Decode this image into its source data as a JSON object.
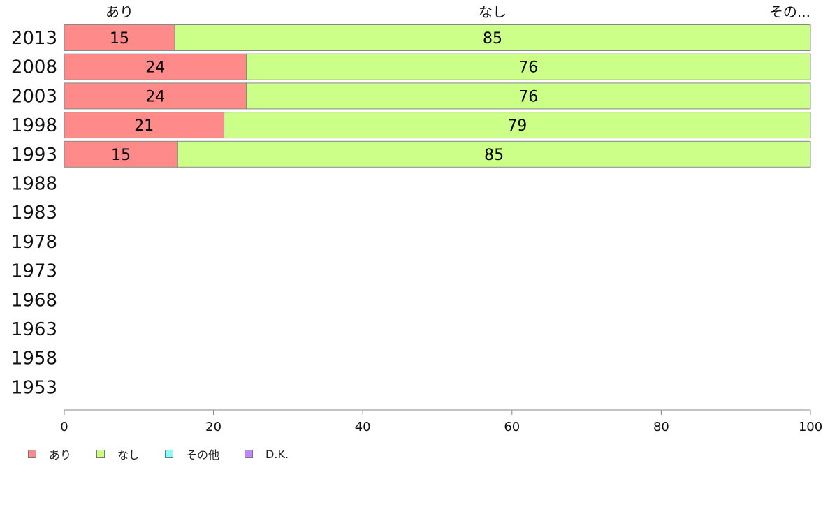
{
  "chart_data": {
    "type": "bar",
    "orientation": "horizontal",
    "stacked": true,
    "categories": [
      "2013",
      "2008",
      "2003",
      "1998",
      "1993",
      "1988",
      "1983",
      "1978",
      "1973",
      "1968",
      "1963",
      "1958",
      "1953"
    ],
    "series": [
      {
        "name": "あり",
        "color": "#ff8a8a",
        "values": [
          14.8,
          24.4,
          24.4,
          21.4,
          15.2,
          null,
          null,
          null,
          null,
          null,
          null,
          null,
          null
        ]
      },
      {
        "name": "なし",
        "color": "#ccff88",
        "values": [
          85.2,
          75.6,
          75.6,
          78.6,
          84.8,
          null,
          null,
          null,
          null,
          null,
          null,
          null,
          null
        ]
      },
      {
        "name": "その他",
        "color": "#88ffff",
        "values": [
          0,
          0,
          0,
          0,
          0,
          null,
          null,
          null,
          null,
          null,
          null,
          null,
          null
        ]
      },
      {
        "name": "D.K.",
        "color": "#bb88ff",
        "values": [
          0,
          0,
          0,
          0,
          0,
          null,
          null,
          null,
          null,
          null,
          null,
          null,
          null
        ]
      }
    ],
    "data_labels": [
      [
        "15",
        "85"
      ],
      [
        "24",
        "76"
      ],
      [
        "24",
        "76"
      ],
      [
        "21",
        "79"
      ],
      [
        "15",
        "85"
      ]
    ],
    "top_labels": [
      "あり",
      "なし",
      "その..."
    ],
    "xlim": [
      0,
      100
    ],
    "xticks": [
      "0",
      "20",
      "40",
      "60",
      "80",
      "100"
    ],
    "grid": false,
    "legend": "bottom-left"
  }
}
